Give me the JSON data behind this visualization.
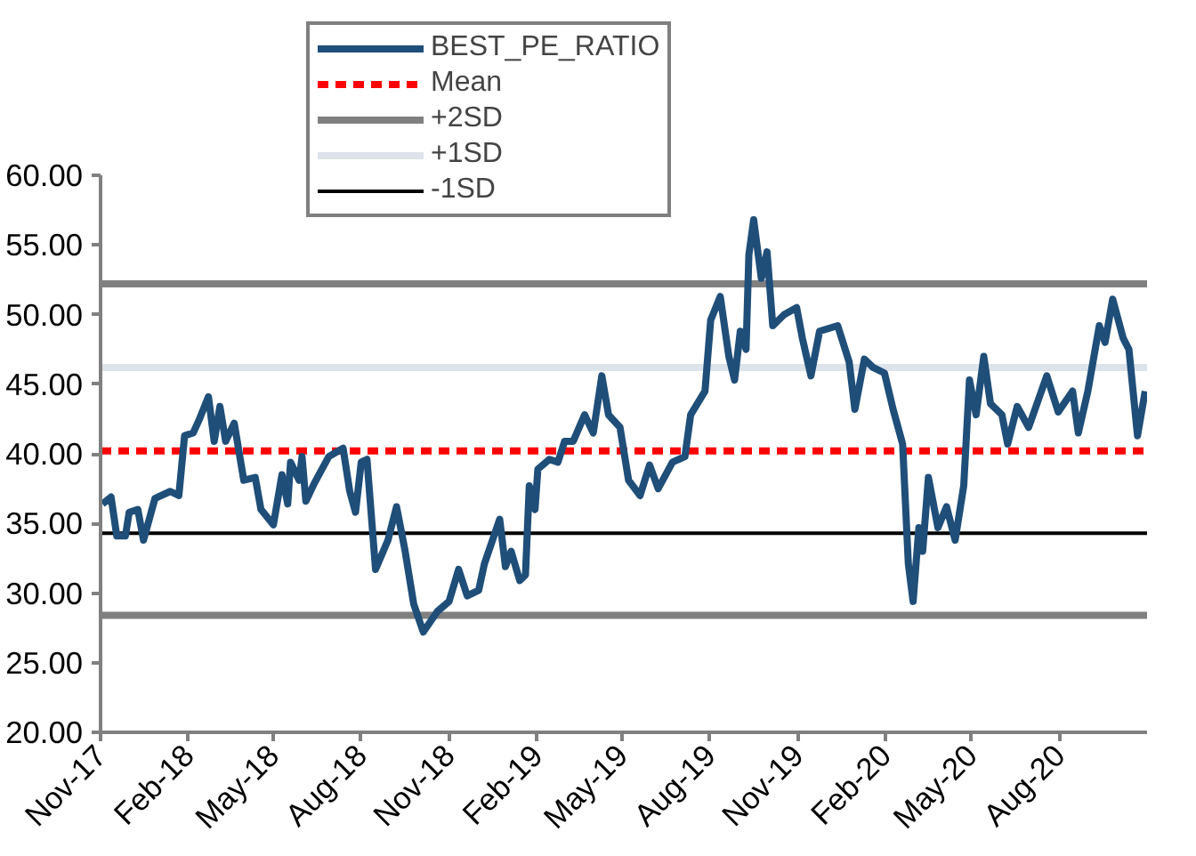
{
  "chart_data": {
    "type": "line",
    "legend": "top",
    "grid": false,
    "line_style": "solid",
    "marker": "none",
    "xlim": [
      "2017-11-01",
      "2020-11-01"
    ],
    "ylim": [
      20,
      60
    ],
    "xticks": [
      {
        "value": "2017-11-01",
        "label": "Nov-17"
      },
      {
        "value": "2018-02-01",
        "label": "Feb-18"
      },
      {
        "value": "2018-05-01",
        "label": "May-18"
      },
      {
        "value": "2018-08-01",
        "label": "Aug-18"
      },
      {
        "value": "2018-11-01",
        "label": "Nov-18"
      },
      {
        "value": "2019-02-01",
        "label": "Feb-19"
      },
      {
        "value": "2019-05-01",
        "label": "May-19"
      },
      {
        "value": "2019-08-01",
        "label": "Aug-19"
      },
      {
        "value": "2019-11-01",
        "label": "Nov-19"
      },
      {
        "value": "2020-02-01",
        "label": "Feb-20"
      },
      {
        "value": "2020-05-01",
        "label": "May-20"
      },
      {
        "value": "2020-08-01",
        "label": "Aug-20"
      }
    ],
    "yticks": [
      {
        "value": 20,
        "label": "20.00"
      },
      {
        "value": 25,
        "label": "25.00"
      },
      {
        "value": 30,
        "label": "30.00"
      },
      {
        "value": 35,
        "label": "35.00"
      },
      {
        "value": 40,
        "label": "40.00"
      },
      {
        "value": 45,
        "label": "45.00"
      },
      {
        "value": 50,
        "label": "50.00"
      },
      {
        "value": 55,
        "label": "55.00"
      },
      {
        "value": 60,
        "label": "60.00"
      }
    ],
    "x": [
      "2017-11-03",
      "2017-11-12",
      "2017-11-18",
      "2017-11-27",
      "2017-12-01",
      "2017-12-10",
      "2017-12-16",
      "2017-12-28",
      "2018-01-13",
      "2018-01-22",
      "2018-01-28",
      "2018-02-06",
      "2018-02-12",
      "2018-02-22",
      "2018-02-28",
      "2018-03-06",
      "2018-03-12",
      "2018-03-21",
      "2018-03-31",
      "2018-04-12",
      "2018-04-18",
      "2018-05-01",
      "2018-05-10",
      "2018-05-16",
      "2018-05-19",
      "2018-05-28",
      "2018-05-31",
      "2018-06-04",
      "2018-06-13",
      "2018-06-28",
      "2018-07-13",
      "2018-07-20",
      "2018-07-26",
      "2018-08-01",
      "2018-08-07",
      "2018-08-16",
      "2018-08-29",
      "2018-09-07",
      "2018-09-16",
      "2018-09-25",
      "2018-10-05",
      "2018-10-20",
      "2018-11-01",
      "2018-11-11",
      "2018-11-20",
      "2018-12-02",
      "2018-12-08",
      "2018-12-24",
      "2018-12-30",
      "2019-01-05",
      "2019-01-14",
      "2019-01-20",
      "2019-01-24",
      "2019-01-30",
      "2019-02-02",
      "2019-02-14",
      "2019-02-23",
      "2019-03-02",
      "2019-03-11",
      "2019-03-23",
      "2019-04-01",
      "2019-04-10",
      "2019-04-17",
      "2019-04-29",
      "2019-05-08",
      "2019-05-20",
      "2019-05-30",
      "2019-06-08",
      "2019-06-23",
      "2019-07-06",
      "2019-07-12",
      "2019-07-27",
      "2019-08-02",
      "2019-08-12",
      "2019-08-21",
      "2019-08-27",
      "2019-09-02",
      "2019-09-08",
      "2019-09-11",
      "2019-09-16",
      "2019-09-24",
      "2019-09-30",
      "2019-10-06",
      "2019-10-18",
      "2019-10-31",
      "2019-11-06",
      "2019-11-15",
      "2019-11-24",
      "2019-12-13",
      "2019-12-25",
      "2019-12-31",
      "2020-01-10",
      "2020-01-19",
      "2020-01-31",
      "2020-02-09",
      "2020-02-19",
      "2020-02-25",
      "2020-03-01",
      "2020-03-07",
      "2020-03-11",
      "2020-03-17",
      "2020-03-27",
      "2020-04-05",
      "2020-04-14",
      "2020-04-23",
      "2020-04-29",
      "2020-05-06",
      "2020-05-14",
      "2020-05-21",
      "2020-06-02",
      "2020-06-08",
      "2020-06-18",
      "2020-06-30",
      "2020-07-19",
      "2020-07-31",
      "2020-08-15",
      "2020-08-21",
      "2020-08-31",
      "2020-09-12",
      "2020-09-18",
      "2020-09-26",
      "2020-10-07",
      "2020-10-13",
      "2020-10-22",
      "2020-10-30"
    ],
    "series": [
      {
        "name": "BEST_PE_RATIO",
        "color": "#1f4e79",
        "values": [
          36.4,
          36.9,
          34.1,
          34.1,
          35.8,
          36.0,
          33.8,
          36.8,
          37.3,
          37.0,
          41.3,
          41.5,
          42.4,
          44.1,
          40.9,
          43.4,
          40.9,
          42.2,
          38.1,
          38.3,
          36.0,
          34.9,
          38.5,
          36.4,
          39.4,
          38.1,
          39.8,
          36.6,
          37.9,
          39.8,
          40.4,
          37.3,
          35.8,
          39.4,
          39.6,
          31.7,
          33.8,
          36.2,
          33.0,
          29.2,
          27.2,
          28.7,
          29.4,
          31.7,
          29.8,
          30.2,
          32.1,
          35.3,
          31.9,
          33.0,
          30.9,
          31.3,
          37.7,
          36.0,
          38.9,
          39.6,
          39.4,
          40.9,
          40.9,
          42.8,
          41.5,
          45.6,
          42.8,
          41.9,
          38.1,
          37.0,
          39.2,
          37.5,
          39.4,
          39.8,
          42.8,
          44.5,
          49.6,
          51.3,
          47.0,
          45.3,
          48.8,
          47.5,
          54.3,
          56.8,
          52.6,
          54.5,
          49.2,
          50.0,
          50.5,
          48.3,
          45.6,
          48.8,
          49.2,
          46.6,
          43.2,
          46.8,
          46.2,
          45.8,
          43.2,
          40.7,
          32.1,
          29.4,
          34.7,
          33.0,
          38.3,
          34.7,
          36.2,
          33.8,
          37.7,
          45.3,
          42.8,
          47.0,
          43.6,
          42.8,
          40.7,
          43.4,
          41.9,
          45.6,
          43.0,
          44.5,
          41.5,
          44.5,
          49.2,
          48.0,
          51.1,
          48.3,
          47.5,
          41.3,
          44.5
        ]
      }
    ],
    "ref_lines": [
      {
        "axis": "y",
        "value": 40.2,
        "label": "Mean",
        "color": "#ff0000",
        "line_style": "dashed"
      },
      {
        "axis": "y",
        "value": 52.2,
        "label": "+2SD",
        "color": "#808080",
        "line_style": "solid"
      },
      {
        "axis": "y",
        "value": 46.2,
        "label": "+1SD",
        "color": "#dde3ea",
        "line_style": "solid"
      },
      {
        "axis": "y",
        "value": 34.3,
        "label": "-1SD",
        "color": "#000000",
        "line_style": "solid"
      },
      {
        "axis": "y",
        "value": 28.4,
        "label": null,
        "color": "#808080",
        "line_style": "solid"
      }
    ]
  }
}
